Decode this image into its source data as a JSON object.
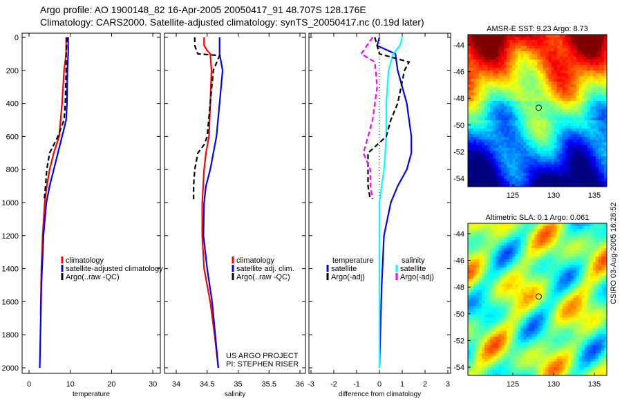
{
  "title_line1": "Argo profile: AO 1900148_82 16-Apr-2005 20050417_91 48.707S 128.176E",
  "title_line2": "Climatology: CARS2000. Satellite-adjusted climatology: synTS_20050417.nc (0.19d later)",
  "stamp": "CSIRO 03-Aug-2005 16:28:52",
  "colors": {
    "climatology": "#ff0000",
    "satellite": "#0000ff",
    "argo": "#000000",
    "sal_satellite": "#00ffff",
    "sal_argo": "#ff00ff"
  },
  "chart_data": [
    {
      "type": "line",
      "xlabel": "temperature",
      "ylabel": "",
      "ylim": [
        2000,
        0
      ],
      "xlim": [
        -2,
        32
      ],
      "xticks": [
        "0",
        "10",
        "20",
        "30"
      ],
      "yticks": [
        "0",
        "200",
        "400",
        "600",
        "800",
        "1000",
        "1200",
        "1400",
        "1600",
        "1800",
        "2000"
      ],
      "legend": [
        "climatology",
        "satellite-adjusted climatology",
        "Argo(..raw -QC)"
      ],
      "series": [
        {
          "name": "climatology",
          "depth": [
            0,
            100,
            200,
            400,
            600,
            700,
            800,
            900,
            1000,
            1200,
            1400,
            1680
          ],
          "values": [
            9,
            9,
            8.5,
            8,
            7.3,
            6,
            5,
            4.3,
            3.8,
            3.3,
            3,
            2.8
          ]
        },
        {
          "name": "satellite-adjusted climatology",
          "depth": [
            0,
            100,
            200,
            400,
            500,
            600,
            700,
            800,
            900,
            1000,
            1200,
            1500,
            2000
          ],
          "values": [
            9.5,
            9.5,
            9.3,
            9.2,
            9,
            8,
            7,
            6,
            5,
            4.2,
            3.5,
            3,
            2.6
          ]
        },
        {
          "name": "Argo(..raw -QC)",
          "depth": [
            0,
            100,
            200,
            400,
            500,
            600,
            700,
            800,
            900,
            980
          ],
          "values": [
            9.2,
            9,
            9,
            8.8,
            8.5,
            7,
            5,
            4.3,
            4,
            3.7
          ]
        }
      ]
    },
    {
      "type": "line",
      "xlabel": "salinity",
      "ylim": [
        2000,
        0
      ],
      "xlim": [
        33.8,
        36.1
      ],
      "xticks": [
        "34",
        "34.5",
        "35",
        "35.5",
        "36"
      ],
      "legend": [
        "climatology",
        "satellite adj. clim.",
        "Argo(..raw -QC)"
      ],
      "annotation": [
        "US ARGO PROJECT",
        "PI: STEPHEN RISER"
      ],
      "series": [
        {
          "name": "climatology",
          "depth": [
            0,
            50,
            80,
            100,
            200,
            400,
            600,
            700,
            800,
            1000,
            1200,
            1400,
            1600,
            1800,
            2000
          ],
          "values": [
            34.45,
            34.45,
            34.5,
            34.55,
            34.57,
            34.55,
            34.53,
            34.48,
            34.45,
            34.42,
            34.42,
            34.45,
            34.55,
            34.62,
            34.68
          ]
        },
        {
          "name": "satellite adj. clim.",
          "depth": [
            0,
            100,
            200,
            400,
            600,
            700,
            800,
            900,
            1000,
            1200,
            1400,
            1600,
            1800,
            2000
          ],
          "values": [
            34.7,
            34.7,
            34.75,
            34.7,
            34.65,
            34.6,
            34.55,
            34.48,
            34.45,
            34.44,
            34.5,
            34.58,
            34.63,
            34.68
          ]
        },
        {
          "name": "Argo(..raw -QC)",
          "depth": [
            0,
            50,
            100,
            110,
            200,
            400,
            600,
            650,
            700,
            800,
            900,
            980
          ],
          "values": [
            34.3,
            34.3,
            34.35,
            34.7,
            34.6,
            34.55,
            34.5,
            34.45,
            34.35,
            34.3,
            34.28,
            34.28
          ]
        }
      ]
    },
    {
      "type": "line",
      "xlabel": "difference from climatology",
      "ylim": [
        2000,
        0
      ],
      "xlim": [
        -3,
        3
      ],
      "xticks": [
        "-3",
        "-2",
        "-1",
        "0",
        "1",
        "2",
        "3"
      ],
      "legend_temperature": {
        "title": "temperature",
        "items": [
          "satellite",
          "Argo(-adj)"
        ]
      },
      "legend_salinity": {
        "title": "salinity",
        "items": [
          "satellite",
          "Argo(-adj)"
        ]
      },
      "series": [
        {
          "name": "temperature satellite",
          "depth": [
            0,
            50,
            100,
            200,
            400,
            600,
            700,
            800,
            900,
            1000,
            1200,
            1500,
            2000
          ],
          "values": [
            0,
            -0.1,
            0.7,
            0.8,
            1.2,
            1.4,
            1.4,
            1.2,
            0.8,
            0.5,
            0.2,
            0.1,
            0
          ]
        },
        {
          "name": "salinity satellite",
          "depth": [
            0,
            50,
            100,
            200,
            400,
            600,
            800,
            1000,
            1500,
            2000
          ],
          "values": [
            1,
            0.9,
            0.6,
            0.4,
            0.3,
            0.3,
            0.2,
            0,
            0,
            0
          ]
        },
        {
          "name": "temperature Argo(-adj)",
          "depth": [
            0,
            100,
            150,
            200,
            400,
            500,
            600,
            700,
            800,
            900,
            980
          ],
          "values": [
            -0.2,
            0,
            1.3,
            1.1,
            0.8,
            0.5,
            0.3,
            -0.5,
            -0.5,
            -0.5,
            -0.4
          ]
        },
        {
          "name": "salinity Argo(-adj)",
          "depth": [
            0,
            100,
            150,
            300,
            400,
            500,
            600,
            700,
            800,
            900,
            980
          ],
          "values": [
            -0.3,
            -0.8,
            -0.2,
            -0.1,
            -0.2,
            -0.3,
            -0.5,
            -0.7,
            -0.4,
            -0.4,
            -0.3
          ]
        }
      ]
    },
    {
      "type": "heatmap",
      "title": "AMSR-E SST: 9.23 Argo: 8.73",
      "xticks": [
        "125",
        "130",
        "135"
      ],
      "yticks": [
        "-44",
        "-46",
        "-48",
        "-50",
        "-52",
        "-54"
      ],
      "marker": {
        "lon": 128.176,
        "lat": -48.707
      }
    },
    {
      "type": "heatmap",
      "title": "Altimetric SLA: 0.1 Argo: 0.061",
      "xticks": [
        "125",
        "130",
        "135"
      ],
      "yticks": [
        "-44",
        "-46",
        "-48",
        "-50",
        "-52",
        "-54"
      ],
      "marker": {
        "lon": 128.176,
        "lat": -48.707
      }
    }
  ]
}
